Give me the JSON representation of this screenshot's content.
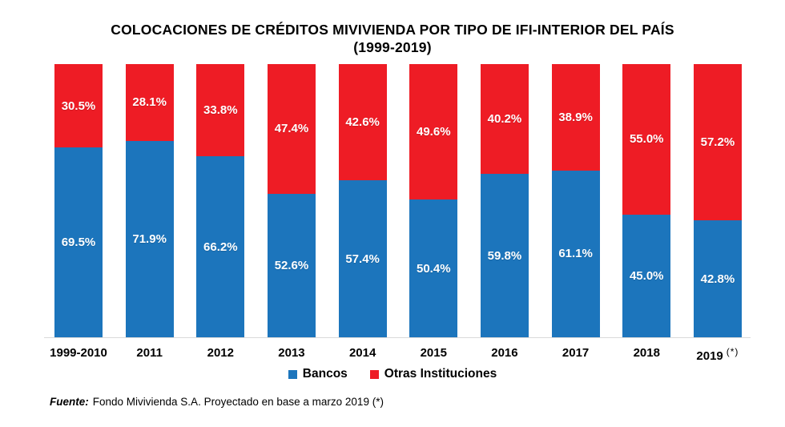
{
  "chart": {
    "title_line1": "COLOCACIONES DE CRÉDITOS MIVIVIENDA POR TIPO DE IFI-INTERIOR DEL PAÍS",
    "title_line2": "(1999-2019)"
  },
  "chart_data": {
    "type": "bar",
    "variant": "stacked-100",
    "unit": "%",
    "title": "COLOCACIONES DE CRÉDITOS MIVIVIENDA POR TIPO DE IFI-INTERIOR DEL PAÍS (1999-2019)",
    "categories": [
      "1999-2010",
      "2011",
      "2012",
      "2013",
      "2014",
      "2015",
      "2016",
      "2017",
      "2018",
      "2019"
    ],
    "series": [
      {
        "name": "Bancos",
        "color": "#1C75BC",
        "values": [
          69.5,
          71.9,
          66.2,
          52.6,
          57.4,
          50.4,
          59.8,
          61.1,
          45.0,
          42.8
        ]
      },
      {
        "name": "Otras Instituciones",
        "color": "#EE1C25",
        "values": [
          30.5,
          28.1,
          33.8,
          47.4,
          42.6,
          49.6,
          40.2,
          38.9,
          55.0,
          57.2
        ]
      }
    ],
    "ylim": [
      0,
      100
    ],
    "grid": false,
    "legend_position": "bottom",
    "footnote_category": "2019",
    "footnote_marker": "(*)"
  },
  "footer": {
    "source_label": "Fuente:",
    "source_text": "Fondo Mivivienda S.A. Proyectado en base a marzo 2019 (*)"
  }
}
